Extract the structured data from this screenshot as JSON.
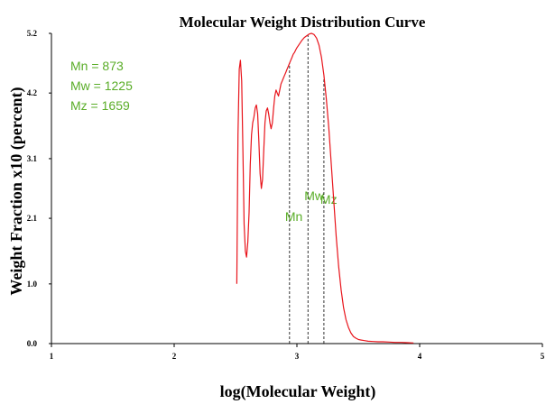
{
  "chart_data": {
    "type": "line",
    "title": "Molecular Weight Distribution Curve",
    "xlabel": "log(Molecular Weight)",
    "ylabel": "Weight Fraction x10 (percent)",
    "xlim": [
      1,
      5
    ],
    "ylim": [
      0,
      5.2
    ],
    "x_ticks": [
      "1",
      "2",
      "3",
      "4",
      "5"
    ],
    "y_ticks": [
      "0.0",
      "1.0",
      "2.1",
      "3.1",
      "4.2",
      "5.2"
    ],
    "grid": false,
    "line_color": "#e8141b",
    "annotation_color": "#5aad28",
    "stats": [
      "Mn = 873",
      "Mw = 1225",
      "Mz = 1659"
    ],
    "markers": [
      {
        "label": "Mn",
        "x": 2.94
      },
      {
        "label": "Mw",
        "x": 3.09
      },
      {
        "label": "Mz",
        "x": 3.22
      }
    ],
    "series": [
      {
        "x": [
          2.51,
          2.52,
          2.53,
          2.54,
          2.55,
          2.56,
          2.57,
          2.58,
          2.59,
          2.6,
          2.61,
          2.62,
          2.63,
          2.64,
          2.65,
          2.66,
          2.67,
          2.68,
          2.69,
          2.7,
          2.71,
          2.72,
          2.73,
          2.74,
          2.75,
          2.76,
          2.77,
          2.78,
          2.79,
          2.8,
          2.81,
          2.82,
          2.83,
          2.84,
          2.85,
          2.86,
          2.87,
          2.88,
          2.89,
          2.9,
          2.91,
          2.92,
          2.93,
          2.94,
          2.95,
          2.96,
          2.97,
          2.98,
          2.99,
          3.0,
          3.02,
          3.04,
          3.06,
          3.08,
          3.1,
          3.12,
          3.14,
          3.16,
          3.18,
          3.2,
          3.22,
          3.24,
          3.26,
          3.28,
          3.3,
          3.32,
          3.34,
          3.36,
          3.38,
          3.4,
          3.42,
          3.44,
          3.46,
          3.48,
          3.5,
          3.52,
          3.55,
          3.58,
          3.62,
          3.66,
          3.7,
          3.75,
          3.8,
          3.85,
          3.9,
          3.95
        ],
        "values": [
          1.0,
          3.5,
          4.6,
          4.75,
          4.4,
          3.2,
          2.0,
          1.55,
          1.45,
          1.7,
          2.2,
          3.0,
          3.5,
          3.7,
          3.8,
          3.95,
          4.0,
          3.85,
          3.4,
          2.85,
          2.6,
          2.75,
          3.25,
          3.7,
          3.9,
          3.95,
          3.85,
          3.7,
          3.6,
          3.7,
          3.95,
          4.15,
          4.25,
          4.2,
          4.15,
          4.25,
          4.35,
          4.4,
          4.45,
          4.5,
          4.55,
          4.6,
          4.65,
          4.7,
          4.75,
          4.8,
          4.85,
          4.88,
          4.92,
          4.96,
          5.02,
          5.08,
          5.13,
          5.16,
          5.19,
          5.2,
          5.18,
          5.12,
          5.0,
          4.8,
          4.5,
          4.1,
          3.6,
          3.0,
          2.4,
          1.8,
          1.3,
          0.9,
          0.6,
          0.4,
          0.27,
          0.18,
          0.12,
          0.09,
          0.07,
          0.06,
          0.05,
          0.04,
          0.035,
          0.03,
          0.03,
          0.025,
          0.02,
          0.02,
          0.015,
          0.01
        ]
      }
    ]
  }
}
